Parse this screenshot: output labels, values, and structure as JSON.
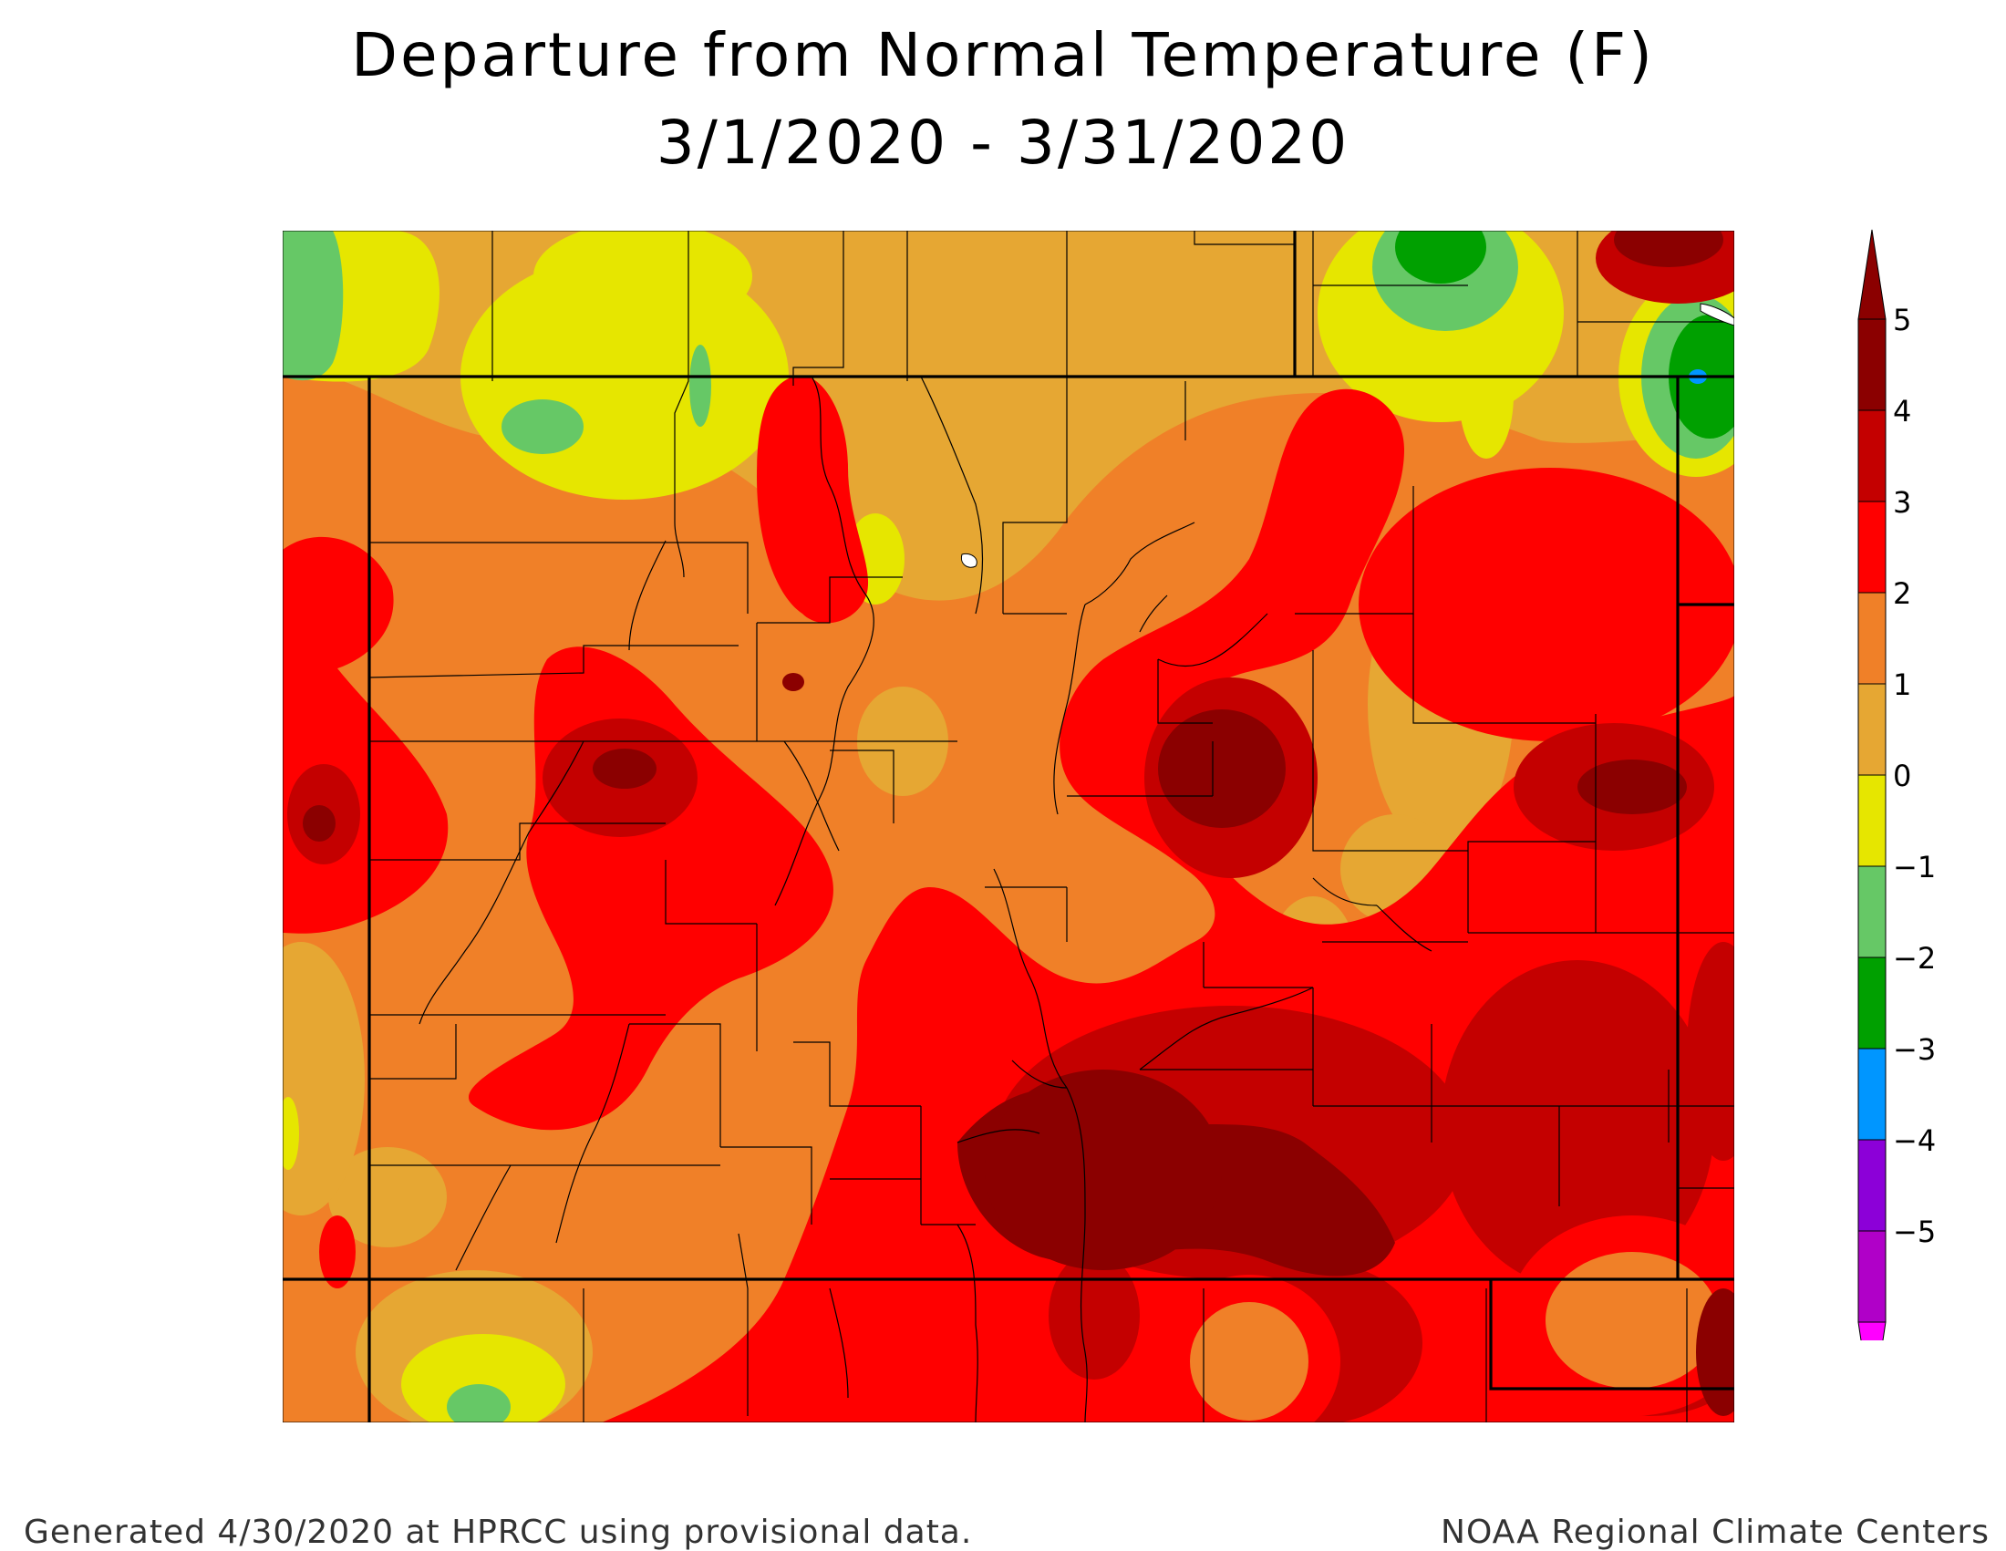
{
  "title_line1": "Departure from Normal Temperature (F)",
  "title_line2": "3/1/2020 - 3/31/2020",
  "legend": {
    "values": [
      "5",
      "4",
      "3",
      "2",
      "1",
      "0",
      "−1",
      "−2",
      "−3",
      "−4",
      "−5"
    ],
    "bin_colors": [
      "#8b0000",
      "#c40000",
      "#ff0000",
      "#f08028",
      "#e6a733",
      "#e6e600",
      "#66c866",
      "#00a000",
      "#0096ff",
      "#8c00d8",
      "#b000c8"
    ],
    "high_arrow_color": "#8b0000",
    "low_arrow_color": "#ff00ff"
  },
  "footer": {
    "left": "Generated 4/30/2020 at HPRCC using provisional data.",
    "right": "NOAA Regional Climate Centers"
  },
  "colors": {
    "d_neg1": "#66c866",
    "d_neg2": "#00a000",
    "d_neg3": "#0096ff",
    "d_0": "#e6e600",
    "d_1": "#e6a733",
    "d_2": "#f08028",
    "d_3": "#ff0000",
    "d_4": "#c40000",
    "d_5": "#8b0000",
    "boundary": "#000000"
  }
}
